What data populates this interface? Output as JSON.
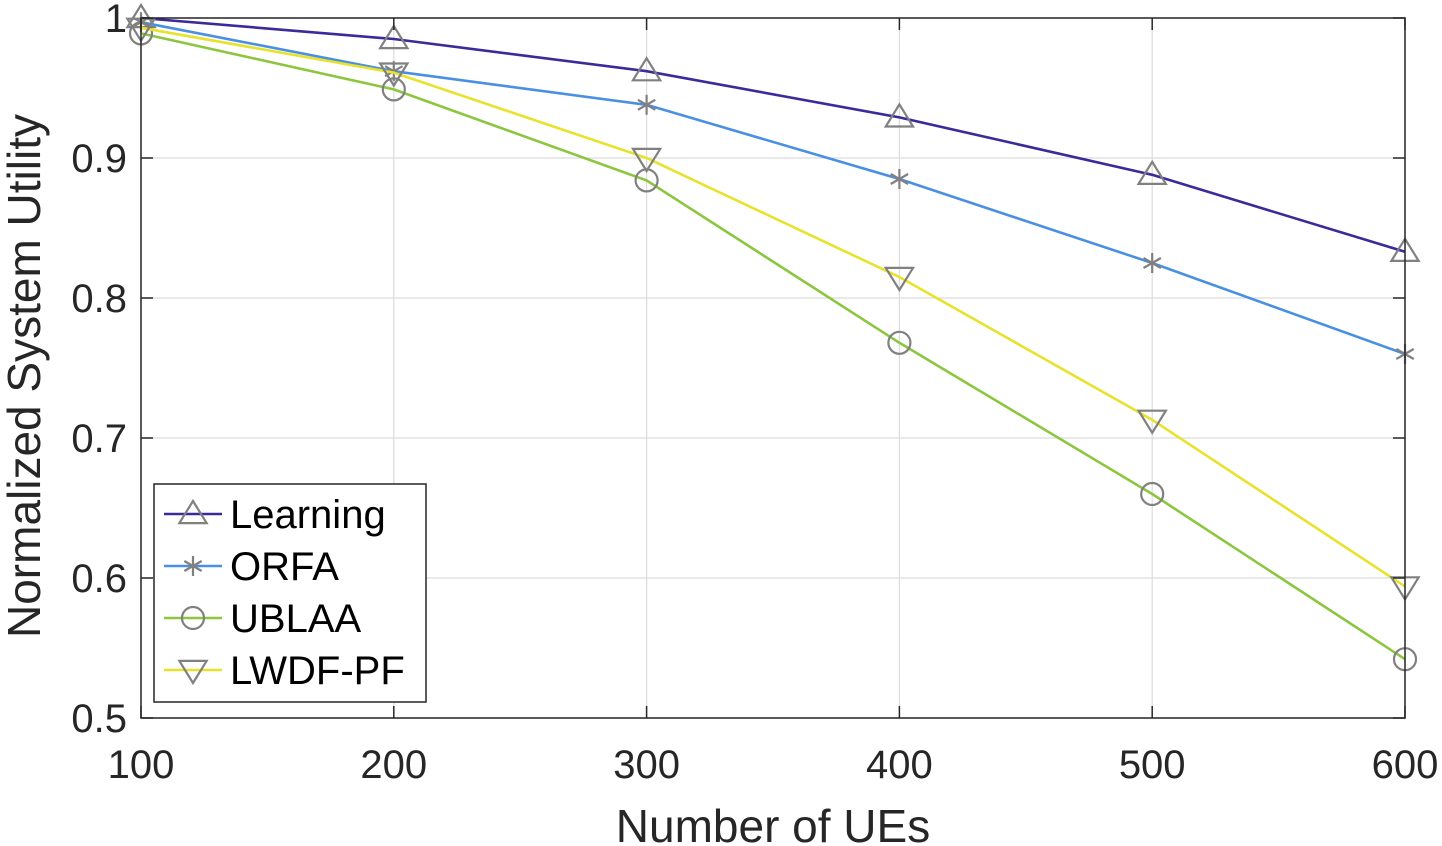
{
  "chart_data": {
    "type": "line",
    "title": "",
    "xlabel": "Number of UEs",
    "ylabel": "Normalized System Utility",
    "x": [
      100,
      200,
      300,
      400,
      500,
      600
    ],
    "xlim": [
      100,
      600
    ],
    "ylim": [
      0.5,
      1.0
    ],
    "xticks": [
      100,
      200,
      300,
      400,
      500,
      600
    ],
    "xtick_labels": [
      "100",
      "200",
      "300",
      "400",
      "500",
      "600"
    ],
    "yticks": [
      0.5,
      0.6,
      0.7,
      0.8,
      0.9,
      1.0
    ],
    "ytick_labels": [
      "0.5",
      "0.6",
      "0.7",
      "0.8",
      "0.9",
      "1"
    ],
    "grid": true,
    "legend_position": "bottom-left",
    "marker_color": "#808080",
    "series": [
      {
        "name": "Learning",
        "marker": "triangle-up",
        "color": "#3b2a9a",
        "values": [
          1.0,
          0.985,
          0.962,
          0.929,
          0.888,
          0.833
        ]
      },
      {
        "name": "ORFA",
        "marker": "asterisk",
        "color": "#4a90e2",
        "values": [
          0.997,
          0.962,
          0.938,
          0.885,
          0.825,
          0.76
        ]
      },
      {
        "name": "UBLAA",
        "marker": "circle",
        "color": "#8cc63f",
        "values": [
          0.989,
          0.949,
          0.884,
          0.768,
          0.66,
          0.542
        ]
      },
      {
        "name": "LWDF-PF",
        "marker": "triangle-down",
        "color": "#e8e22c",
        "values": [
          0.993,
          0.961,
          0.9,
          0.815,
          0.713,
          0.594
        ]
      }
    ]
  }
}
